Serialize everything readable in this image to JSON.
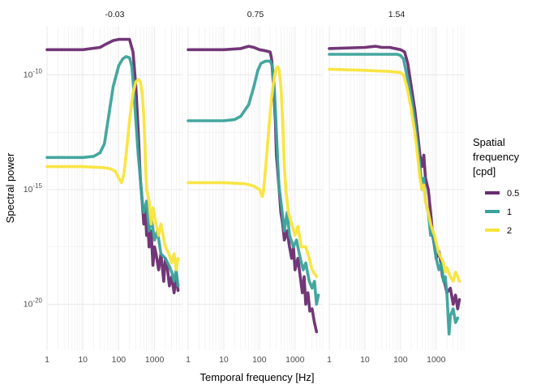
{
  "chart_data": {
    "type": "line",
    "facets": [
      {
        "label": "-0.03"
      },
      {
        "label": "0.75"
      },
      {
        "label": "1.54"
      }
    ],
    "xlabel": "Temporal frequency [Hz]",
    "ylabel": "Spectral power",
    "x_scale": "log10",
    "y_scale": "log10",
    "xlim": [
      1,
      6000
    ],
    "ylim_exponent": [
      -22.0,
      -7.9
    ],
    "x_ticks": [
      {
        "value": 1,
        "label": "1"
      },
      {
        "value": 10,
        "label": "10"
      },
      {
        "value": 100,
        "label": "100"
      },
      {
        "value": 1000,
        "label": "1000"
      }
    ],
    "y_ticks": [
      {
        "exponent": -10,
        "base": "10",
        "power": "-10"
      },
      {
        "exponent": -15,
        "base": "10",
        "power": "-15"
      },
      {
        "exponent": -20,
        "base": "10",
        "power": "-20"
      }
    ],
    "grid": true,
    "legend": {
      "title_lines": [
        "Spatial",
        "frequency",
        "[cpd]"
      ],
      "position": "right",
      "entries": [
        {
          "label": "0.5",
          "color": "#6a2c70"
        },
        {
          "label": "1",
          "color": "#3aa29a"
        },
        {
          "label": "2",
          "color": "#f9e43a"
        }
      ]
    },
    "colors": {
      "0.5": "#6a2c70",
      "1": "#3aa29a",
      "2": "#f9e43a",
      "grid": "#ebebeb"
    },
    "note": "y values are log10(spectral power)",
    "series": [
      {
        "panel": 0,
        "name": "0.5",
        "points": [
          [
            1,
            -8.9
          ],
          [
            10,
            -8.9
          ],
          [
            30,
            -8.8
          ],
          [
            45,
            -8.65
          ],
          [
            70,
            -8.5
          ],
          [
            100,
            -8.45
          ],
          [
            200,
            -8.45
          ],
          [
            250,
            -9.0
          ],
          [
            300,
            -10.5
          ],
          [
            350,
            -12.5
          ],
          [
            400,
            -14.5
          ],
          [
            450,
            -15.5
          ],
          [
            500,
            -16.5
          ],
          [
            550,
            -15.8
          ],
          [
            600,
            -17.0
          ],
          [
            650,
            -16.5
          ],
          [
            700,
            -17.5
          ],
          [
            800,
            -16.8
          ],
          [
            900,
            -18.3
          ],
          [
            1000,
            -17.5
          ],
          [
            1100,
            -17.8
          ],
          [
            1300,
            -18.5
          ],
          [
            1500,
            -17.8
          ],
          [
            1800,
            -19.0
          ],
          [
            2000,
            -18.0
          ],
          [
            2300,
            -18.5
          ],
          [
            2600,
            -19.2
          ],
          [
            3000,
            -18.8
          ],
          [
            3500,
            -19.5
          ],
          [
            4000,
            -18.7
          ],
          [
            4500,
            -19.4
          ]
        ]
      },
      {
        "panel": 0,
        "name": "1",
        "points": [
          [
            1,
            -13.6
          ],
          [
            10,
            -13.6
          ],
          [
            20,
            -13.55
          ],
          [
            30,
            -13.4
          ],
          [
            40,
            -13.0
          ],
          [
            50,
            -12.0
          ],
          [
            70,
            -10.5
          ],
          [
            100,
            -9.6
          ],
          [
            130,
            -9.3
          ],
          [
            160,
            -9.2
          ],
          [
            200,
            -9.25
          ],
          [
            230,
            -9.6
          ],
          [
            260,
            -10.5
          ],
          [
            300,
            -12.0
          ],
          [
            350,
            -13.5
          ],
          [
            400,
            -14.5
          ],
          [
            450,
            -15.5
          ],
          [
            500,
            -16.0
          ],
          [
            600,
            -15.5
          ],
          [
            700,
            -16.8
          ],
          [
            800,
            -16.2
          ],
          [
            1000,
            -17.2
          ],
          [
            1200,
            -16.8
          ],
          [
            1500,
            -17.8
          ],
          [
            2000,
            -18.0
          ],
          [
            2500,
            -18.3
          ],
          [
            3000,
            -18.6
          ],
          [
            3500,
            -19.0
          ],
          [
            4000,
            -18.5
          ],
          [
            4500,
            -19.2
          ]
        ]
      },
      {
        "panel": 0,
        "name": "2",
        "points": [
          [
            1,
            -14.0
          ],
          [
            10,
            -14.0
          ],
          [
            40,
            -14.05
          ],
          [
            60,
            -14.1
          ],
          [
            80,
            -14.2
          ],
          [
            100,
            -14.5
          ],
          [
            120,
            -14.7
          ],
          [
            140,
            -14.3
          ],
          [
            160,
            -13.5
          ],
          [
            200,
            -12.0
          ],
          [
            250,
            -10.8
          ],
          [
            300,
            -10.3
          ],
          [
            350,
            -10.2
          ],
          [
            400,
            -10.3
          ],
          [
            450,
            -10.8
          ],
          [
            500,
            -11.8
          ],
          [
            550,
            -13.5
          ],
          [
            600,
            -15.0
          ],
          [
            700,
            -15.5
          ],
          [
            800,
            -16.5
          ],
          [
            900,
            -15.8
          ],
          [
            1100,
            -16.5
          ],
          [
            1300,
            -17.0
          ],
          [
            1500,
            -16.5
          ],
          [
            2000,
            -17.5
          ],
          [
            2500,
            -17.8
          ],
          [
            3000,
            -18.2
          ],
          [
            3500,
            -17.8
          ],
          [
            4000,
            -18.5
          ],
          [
            4500,
            -18.0
          ]
        ]
      },
      {
        "panel": 1,
        "name": "0.5",
        "points": [
          [
            1,
            -8.9
          ],
          [
            10,
            -8.9
          ],
          [
            30,
            -8.85
          ],
          [
            50,
            -8.75
          ],
          [
            70,
            -8.8
          ],
          [
            100,
            -8.9
          ],
          [
            150,
            -8.95
          ],
          [
            200,
            -9.0
          ],
          [
            220,
            -9.3
          ],
          [
            250,
            -10.5
          ],
          [
            280,
            -12.0
          ],
          [
            300,
            -13.5
          ],
          [
            350,
            -14.8
          ],
          [
            400,
            -16.0
          ],
          [
            450,
            -16.5
          ],
          [
            500,
            -17.2
          ],
          [
            600,
            -16.8
          ],
          [
            700,
            -17.5
          ],
          [
            800,
            -18.0
          ],
          [
            900,
            -17.5
          ],
          [
            1000,
            -18.5
          ],
          [
            1200,
            -18.0
          ],
          [
            1400,
            -18.8
          ],
          [
            1600,
            -19.5
          ],
          [
            1800,
            -18.8
          ],
          [
            2000,
            -20.0
          ],
          [
            2300,
            -19.5
          ],
          [
            2600,
            -20.3
          ],
          [
            3000,
            -20.2
          ],
          [
            3500,
            -20.8
          ],
          [
            4000,
            -21.2
          ]
        ]
      },
      {
        "panel": 1,
        "name": "1",
        "points": [
          [
            1,
            -12.0
          ],
          [
            10,
            -12.0
          ],
          [
            20,
            -11.95
          ],
          [
            30,
            -11.8
          ],
          [
            50,
            -11.3
          ],
          [
            70,
            -10.5
          ],
          [
            90,
            -9.8
          ],
          [
            110,
            -9.5
          ],
          [
            150,
            -9.4
          ],
          [
            200,
            -9.4
          ],
          [
            230,
            -9.6
          ],
          [
            260,
            -10.5
          ],
          [
            290,
            -12.0
          ],
          [
            320,
            -13.5
          ],
          [
            350,
            -14.8
          ],
          [
            400,
            -15.5
          ],
          [
            500,
            -16.8
          ],
          [
            600,
            -16.0
          ],
          [
            700,
            -17.0
          ],
          [
            900,
            -17.5
          ],
          [
            1100,
            -17.2
          ],
          [
            1400,
            -18.0
          ],
          [
            1700,
            -18.5
          ],
          [
            2000,
            -18.2
          ],
          [
            2500,
            -19.0
          ],
          [
            3000,
            -19.3
          ],
          [
            3500,
            -19.0
          ],
          [
            4000,
            -20.0
          ],
          [
            4500,
            -19.6
          ]
        ]
      },
      {
        "panel": 1,
        "name": "2",
        "points": [
          [
            1,
            -14.7
          ],
          [
            10,
            -14.7
          ],
          [
            40,
            -14.75
          ],
          [
            70,
            -14.85
          ],
          [
            100,
            -15.0
          ],
          [
            120,
            -15.3
          ],
          [
            130,
            -15.1
          ],
          [
            150,
            -14.0
          ],
          [
            180,
            -12.5
          ],
          [
            220,
            -11.0
          ],
          [
            260,
            -10.1
          ],
          [
            300,
            -9.7
          ],
          [
            330,
            -9.65
          ],
          [
            360,
            -9.8
          ],
          [
            400,
            -10.5
          ],
          [
            450,
            -12.0
          ],
          [
            500,
            -14.0
          ],
          [
            550,
            -15.0
          ],
          [
            650,
            -16.0
          ],
          [
            800,
            -16.5
          ],
          [
            1000,
            -17.0
          ],
          [
            1200,
            -16.6
          ],
          [
            1500,
            -17.5
          ],
          [
            2000,
            -17.5
          ],
          [
            2500,
            -18.0
          ],
          [
            3000,
            -18.5
          ],
          [
            4000,
            -18.8
          ]
        ]
      },
      {
        "panel": 2,
        "name": "0.5",
        "points": [
          [
            1,
            -8.85
          ],
          [
            10,
            -8.8
          ],
          [
            20,
            -8.75
          ],
          [
            30,
            -8.8
          ],
          [
            50,
            -8.8
          ],
          [
            70,
            -8.85
          ],
          [
            100,
            -8.9
          ],
          [
            130,
            -9.0
          ],
          [
            160,
            -9.5
          ],
          [
            200,
            -10.5
          ],
          [
            250,
            -11.5
          ],
          [
            300,
            -12.5
          ],
          [
            350,
            -13.5
          ],
          [
            400,
            -14.0
          ],
          [
            450,
            -13.5
          ],
          [
            500,
            -14.5
          ],
          [
            600,
            -15.0
          ],
          [
            700,
            -16.0
          ],
          [
            800,
            -17.0
          ],
          [
            900,
            -17.5
          ],
          [
            1000,
            -18.0
          ],
          [
            1200,
            -17.7
          ],
          [
            1400,
            -18.3
          ],
          [
            1500,
            -18.8
          ],
          [
            1700,
            -19.0
          ],
          [
            2000,
            -19.5
          ],
          [
            2500,
            -19.3
          ],
          [
            3000,
            -20.0
          ],
          [
            3500,
            -19.6
          ],
          [
            4000,
            -20.2
          ],
          [
            4500,
            -19.8
          ]
        ]
      },
      {
        "panel": 2,
        "name": "1",
        "points": [
          [
            1,
            -9.1
          ],
          [
            10,
            -9.1
          ],
          [
            50,
            -9.1
          ],
          [
            80,
            -9.1
          ],
          [
            100,
            -9.15
          ],
          [
            120,
            -9.3
          ],
          [
            150,
            -10.0
          ],
          [
            200,
            -11.0
          ],
          [
            250,
            -12.0
          ],
          [
            300,
            -13.0
          ],
          [
            350,
            -14.0
          ],
          [
            400,
            -15.0
          ],
          [
            450,
            -14.5
          ],
          [
            500,
            -15.5
          ],
          [
            600,
            -16.0
          ],
          [
            700,
            -17.0
          ],
          [
            800,
            -16.8
          ],
          [
            900,
            -17.5
          ],
          [
            1000,
            -18.0
          ],
          [
            1200,
            -18.5
          ],
          [
            1400,
            -18.2
          ],
          [
            1600,
            -19.0
          ],
          [
            1800,
            -18.8
          ],
          [
            2000,
            -19.5
          ],
          [
            2300,
            -21.3
          ],
          [
            2500,
            -20.5
          ],
          [
            3000,
            -20.2
          ],
          [
            3500,
            -20.8
          ],
          [
            4000,
            -20.6
          ]
        ]
      },
      {
        "panel": 2,
        "name": "2",
        "points": [
          [
            1,
            -9.75
          ],
          [
            10,
            -9.8
          ],
          [
            50,
            -9.85
          ],
          [
            100,
            -9.9
          ],
          [
            120,
            -10.0
          ],
          [
            150,
            -10.5
          ],
          [
            200,
            -11.5
          ],
          [
            250,
            -12.5
          ],
          [
            300,
            -13.5
          ],
          [
            350,
            -14.5
          ],
          [
            400,
            -15.0
          ],
          [
            450,
            -14.8
          ],
          [
            500,
            -15.5
          ],
          [
            600,
            -16.0
          ],
          [
            700,
            -16.5
          ],
          [
            800,
            -16.8
          ],
          [
            900,
            -17.0
          ],
          [
            1000,
            -17.3
          ],
          [
            1200,
            -17.8
          ],
          [
            1400,
            -18.0
          ],
          [
            1600,
            -18.2
          ],
          [
            1800,
            -18.6
          ],
          [
            2000,
            -18.4
          ],
          [
            2500,
            -18.8
          ],
          [
            3000,
            -19.0
          ],
          [
            3500,
            -18.6
          ],
          [
            4000,
            -18.8
          ],
          [
            4500,
            -19.0
          ]
        ]
      }
    ]
  }
}
